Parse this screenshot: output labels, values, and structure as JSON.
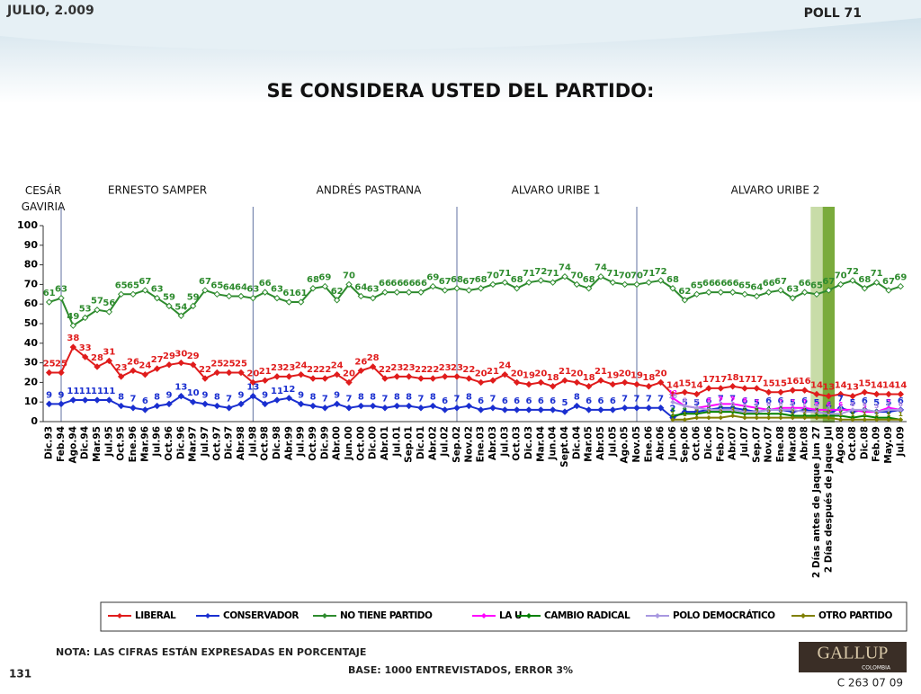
{
  "header": {
    "date": "JULIO, 2.009",
    "poll": "POLL 71"
  },
  "chart_data": {
    "type": "line",
    "title": "SE CONSIDERA USTED DEL PARTIDO:",
    "periods": [
      "CESÁR GAVIRIA",
      "ERNESTO SAMPER",
      "ANDRÉS  PASTRANA",
      "ALVARO URIBE 1",
      "ALVARO URIBE 2"
    ],
    "categories": [
      "Dic.93",
      "Feb.94",
      "Ago.94",
      "Dic.94",
      "Mar.95",
      "Jul.95",
      "Oct.95",
      "Ene.96",
      "Mar.96",
      "Jul.96",
      "Oct.96",
      "Dic.96",
      "Mar.97",
      "Jul.97",
      "Oct.97",
      "Dic.97",
      "Abr.98",
      "Jul.98",
      "Oct.98",
      "Dic.98",
      "Abr.99",
      "Jul.99",
      "Oct.99",
      "Dic.99",
      "Abr.00",
      "Jun.00",
      "Oct.00",
      "Dic.00",
      "Abr.01",
      "Jul.01",
      "Sep.01",
      "Dic.01",
      "Abr.02",
      "Jul.02",
      "Sep.02",
      "Nov.02",
      "Ene.03",
      "Abr.03",
      "Jul.03",
      "Oct.03",
      "Dic.03",
      "Mar.04",
      "Jun.04",
      "Sept.04",
      "Dic.04",
      "Mar.05",
      "Abr.05",
      "Jul.05",
      "Ago.05",
      "Nov.05",
      "Ene.06",
      "Abr.06",
      "Jun.06",
      "Sep.06",
      "Oct.06",
      "Dic.06",
      "Feb.07",
      "Abr.07",
      "Jul.07",
      "Sep.07",
      "Nov.07",
      "Ene.08",
      "Mar.08",
      "Abr.08",
      "2 Días antes de Jaque Jun 27",
      "2 Días después de Jaque Jul",
      "Ago.08",
      "Oct.08",
      "Dic.08",
      "Feb.09",
      "May.09",
      "Jul.09"
    ],
    "series": [
      {
        "name": "LIBERAL",
        "color": "#e01c1c",
        "values": [
          25,
          25,
          38,
          33,
          28,
          31,
          23,
          26,
          24,
          27,
          29,
          30,
          29,
          22,
          25,
          25,
          25,
          20,
          21,
          23,
          23,
          24,
          22,
          22,
          24,
          20,
          26,
          28,
          22,
          23,
          23,
          22,
          22,
          23,
          23,
          22,
          20,
          21,
          24,
          20,
          19,
          20,
          18,
          21,
          20,
          18,
          21,
          19,
          20,
          19,
          18,
          20,
          14,
          15,
          14,
          17,
          17,
          18,
          17,
          17,
          15,
          15,
          16,
          16,
          14,
          13,
          14,
          13,
          15,
          14,
          14,
          14
        ]
      },
      {
        "name": "CONSERVADOR",
        "color": "#1a2fd0",
        "values": [
          9,
          9,
          11,
          11,
          11,
          11,
          8,
          7,
          6,
          8,
          9,
          13,
          10,
          9,
          8,
          7,
          9,
          13,
          9,
          11,
          12,
          9,
          8,
          7,
          9,
          7,
          8,
          8,
          7,
          8,
          8,
          7,
          8,
          6,
          7,
          8,
          6,
          7,
          6,
          6,
          6,
          6,
          6,
          5,
          8,
          6,
          6,
          6,
          7,
          7,
          7,
          7,
          2,
          5,
          5,
          6,
          7,
          7,
          6,
          5,
          6,
          6,
          5,
          6,
          5,
          4,
          7,
          5,
          6,
          5,
          5,
          6
        ]
      },
      {
        "name": "NO TIENE PARTIDO",
        "color": "#2e8b2e",
        "values": [
          61,
          63,
          49,
          53,
          57,
          56,
          65,
          65,
          67,
          63,
          59,
          54,
          59,
          67,
          65,
          64,
          64,
          63,
          66,
          63,
          61,
          61,
          68,
          69,
          62,
          70,
          64,
          63,
          66,
          66,
          66,
          66,
          69,
          67,
          68,
          67,
          68,
          70,
          71,
          68,
          71,
          72,
          71,
          74,
          70,
          68,
          74,
          71,
          70,
          70,
          71,
          72,
          68,
          62,
          65,
          66,
          66,
          66,
          65,
          64,
          66,
          67,
          63,
          66,
          65,
          67,
          70,
          72,
          68,
          71,
          67,
          69
        ]
      },
      {
        "name": "LA U",
        "color": "#ff00ff",
        "values": [
          null,
          null,
          null,
          null,
          null,
          null,
          null,
          null,
          null,
          null,
          null,
          null,
          null,
          null,
          null,
          null,
          null,
          null,
          null,
          null,
          null,
          null,
          null,
          null,
          null,
          null,
          null,
          null,
          null,
          null,
          null,
          null,
          null,
          null,
          null,
          null,
          null,
          null,
          null,
          null,
          null,
          null,
          null,
          null,
          null,
          null,
          null,
          null,
          null,
          null,
          null,
          null,
          12,
          8,
          7,
          8,
          9,
          9,
          8,
          7,
          6,
          7,
          7,
          7,
          6,
          6,
          6,
          6,
          5,
          5,
          7,
          6
        ]
      },
      {
        "name": "CAMBIO RADICAL",
        "color": "#008000",
        "values": [
          null,
          null,
          null,
          null,
          null,
          null,
          null,
          null,
          null,
          null,
          null,
          null,
          null,
          null,
          null,
          null,
          null,
          null,
          null,
          null,
          null,
          null,
          null,
          null,
          null,
          null,
          null,
          null,
          null,
          null,
          null,
          null,
          null,
          null,
          null,
          null,
          null,
          null,
          null,
          null,
          null,
          null,
          null,
          null,
          null,
          null,
          null,
          null,
          null,
          null,
          null,
          null,
          3,
          4,
          4,
          5,
          5,
          5,
          4,
          4,
          4,
          4,
          3,
          3,
          3,
          3,
          3,
          2,
          3,
          2,
          2,
          1
        ]
      },
      {
        "name": "POLO DEMOCRÁTICO",
        "color": "#a898e0",
        "values": [
          null,
          null,
          null,
          null,
          null,
          null,
          null,
          null,
          null,
          null,
          null,
          null,
          null,
          null,
          null,
          null,
          null,
          null,
          null,
          null,
          null,
          null,
          null,
          null,
          null,
          null,
          null,
          null,
          null,
          null,
          null,
          null,
          null,
          null,
          null,
          null,
          null,
          null,
          null,
          null,
          null,
          null,
          null,
          null,
          null,
          null,
          null,
          null,
          null,
          null,
          null,
          null,
          10,
          8,
          7,
          6,
          6,
          6,
          5,
          5,
          6,
          6,
          6,
          5,
          5,
          4,
          4,
          6,
          6,
          5,
          6,
          6
        ]
      },
      {
        "name": "OTRO PARTIDO",
        "color": "#808000",
        "values": [
          null,
          null,
          null,
          null,
          null,
          null,
          null,
          null,
          null,
          null,
          null,
          null,
          null,
          null,
          null,
          null,
          null,
          null,
          null,
          null,
          null,
          null,
          null,
          null,
          null,
          null,
          null,
          null,
          null,
          null,
          null,
          null,
          null,
          null,
          null,
          null,
          null,
          null,
          null,
          null,
          null,
          null,
          null,
          null,
          null,
          null,
          null,
          null,
          null,
          null,
          null,
          null,
          1,
          1,
          2,
          2,
          2,
          3,
          2,
          2,
          2,
          2,
          2,
          2,
          2,
          2,
          1,
          1,
          1,
          1,
          1,
          1
        ]
      }
    ],
    "ylim": [
      0,
      100
    ],
    "yticks": [
      0,
      10,
      20,
      30,
      40,
      50,
      60,
      70,
      80,
      90,
      100
    ]
  },
  "footer": {
    "note": "NOTA: LAS CIFRAS ESTÁN EXPRESADAS EN PORCENTAJE",
    "base": "BASE: 1000 ENTREVISTADOS, ERROR 3%",
    "page": "131",
    "code": "C 263 07 09",
    "logo": "GALLUP",
    "logo_sub": "COLOMBIA"
  }
}
